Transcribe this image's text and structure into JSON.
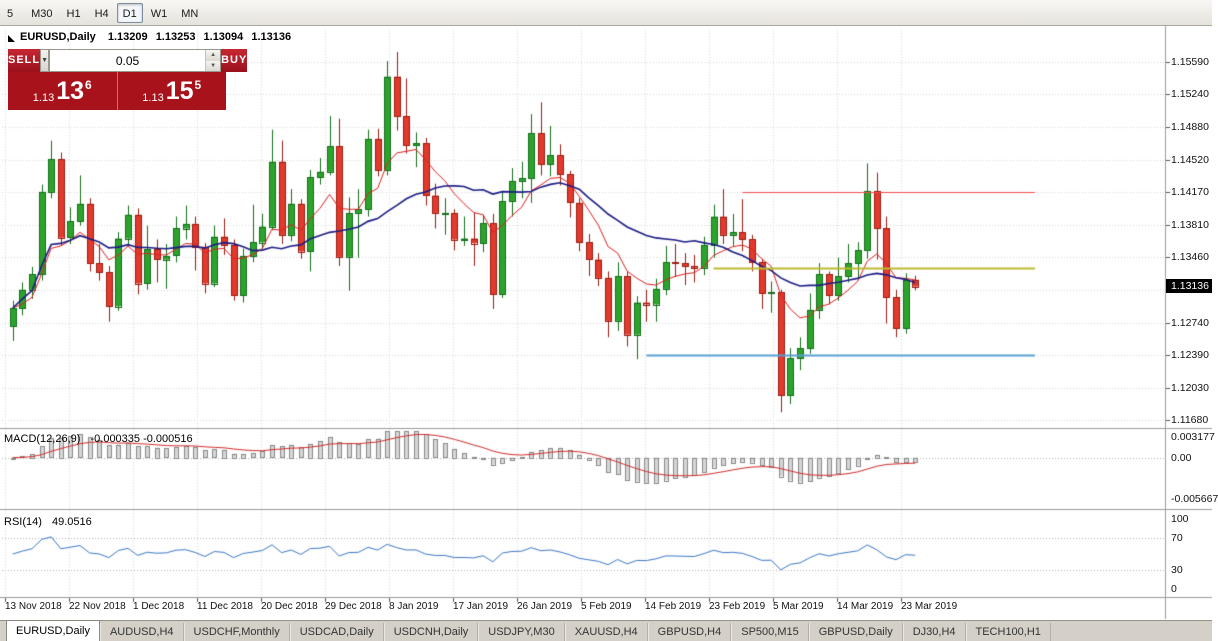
{
  "toolbar": {
    "timeframes": [
      {
        "label": "5",
        "active": false
      },
      {
        "label": "M30",
        "active": false
      },
      {
        "label": "H1",
        "active": false
      },
      {
        "label": "H4",
        "active": false
      },
      {
        "label": "D1",
        "active": true
      },
      {
        "label": "W1",
        "active": false
      },
      {
        "label": "MN",
        "active": false
      }
    ]
  },
  "chart_header": {
    "symbol_period": "EURUSD,Daily",
    "open": "1.13209",
    "high": "1.13253",
    "low": "1.13094",
    "close": "1.13136"
  },
  "trade_panel": {
    "sell_label": "SELL",
    "buy_label": "BUY",
    "volume": "0.05",
    "bid": {
      "prefix": "1.13",
      "big": "13",
      "sup": "6"
    },
    "ask": {
      "prefix": "1.13",
      "big": "15",
      "sup": "5"
    }
  },
  "icons": {
    "dropdown": "▼",
    "spin_up": "▲",
    "spin_down": "▼"
  },
  "price_scale": {
    "items": [
      {
        "price": 1.1559,
        "label": "1.15590"
      },
      {
        "price": 1.1524,
        "label": "1.15240"
      },
      {
        "price": 1.1488,
        "label": "1.14880"
      },
      {
        "price": 1.1452,
        "label": "1.14520"
      },
      {
        "price": 1.1417,
        "label": "1.14170"
      },
      {
        "price": 1.1381,
        "label": "1.13810"
      },
      {
        "price": 1.1346,
        "label": "1.13460"
      },
      {
        "price": 1.131,
        "label": ""
      },
      {
        "price": 1.1274,
        "label": "1.12740"
      },
      {
        "price": 1.1239,
        "label": "1.12390"
      },
      {
        "price": 1.1203,
        "label": "1.12030"
      },
      {
        "price": 1.1168,
        "label": "1.11680"
      }
    ],
    "current_price": 1.13136,
    "current_label": "1.13136"
  },
  "time_scale": {
    "labels": [
      "13 Nov 2018",
      "22 Nov 2018",
      "1 Dec 2018",
      "11 Dec 2018",
      "20 Dec 2018",
      "29 Dec 2018",
      "8 Jan 2019",
      "17 Jan 2019",
      "26 Jan 2019",
      "5 Feb 2019",
      "14 Feb 2019",
      "23 Feb 2019",
      "5 Mar 2019",
      "14 Mar 2019",
      "23 Mar 2019"
    ]
  },
  "indicators": {
    "macd": {
      "title": "MACD(12,26,9)",
      "values": "-0.000335 -0.000516",
      "scale": [
        {
          "value": 0.003177,
          "label": "0.003177"
        },
        {
          "value": 0,
          "label": "0.00"
        },
        {
          "value": -0.005667,
          "label": "-0.005667"
        }
      ]
    },
    "rsi": {
      "title": "RSI(14)",
      "value": "49.0516",
      "scale": [
        {
          "value": 100,
          "label": "100"
        },
        {
          "value": 70,
          "label": "70"
        },
        {
          "value": 30,
          "label": "30"
        },
        {
          "value": 0,
          "label": "0"
        }
      ]
    }
  },
  "tabs": [
    {
      "label": "EURUSD,Daily",
      "active": true
    },
    {
      "label": "AUDUSD,H4",
      "active": false
    },
    {
      "label": "USDCHF,Monthly",
      "active": false
    },
    {
      "label": "USDCAD,Daily",
      "active": false
    },
    {
      "label": "USDCNH,Daily",
      "active": false
    },
    {
      "label": "USDJPY,M30",
      "active": false
    },
    {
      "label": "XAUUSD,H4",
      "active": false
    },
    {
      "label": "GBPUSD,H4",
      "active": false
    },
    {
      "label": "SP500,M15",
      "active": false
    },
    {
      "label": "GBPUSD,Daily",
      "active": false
    },
    {
      "label": "DJ30,H4",
      "active": false
    },
    {
      "label": "TECH100,H1",
      "active": false
    }
  ],
  "colors": {
    "candle_up": "#2da32d",
    "candle_up_border": "#156f1c",
    "candle_down": "#e23a2c",
    "candle_down_border": "#9e1d12",
    "ma_fast": "#e02020",
    "ma_slow": "#1c1c84",
    "macd_histogram_fill": "#d6d6d6",
    "macd_histogram_border": "#8a8a8a",
    "macd_signal": "#d42a2a",
    "rsi_line": "#3c78c8",
    "hline_red": "#f25050",
    "hline_yellow": "#b9bc30",
    "hline_blue": "#56a0d2",
    "badge_bg": "#000000",
    "trade_red": "#a8121b",
    "grid": "#d9d9d9"
  },
  "chart_data": {
    "type": "candlestick",
    "symbol": "EURUSD",
    "timeframe": "Daily",
    "ylim": [
      1.1161,
      1.1594
    ],
    "macd_ylim": [
      -0.005667,
      0.003177
    ],
    "rsi_ylim": [
      0,
      100
    ],
    "ma_fast_period": 8,
    "ma_slow_period": 21,
    "hlines": [
      {
        "price": 1.1417,
        "color": "#f25050",
        "width": 1,
        "start_index": 76
      },
      {
        "price": 1.1334,
        "color": "#b9bc30",
        "width": 2,
        "start_index": 73
      },
      {
        "price": 1.1239,
        "color": "#56a0d2",
        "width": 2,
        "start_index": 66
      }
    ],
    "candles": [
      [
        1.127,
        1.1298,
        1.1254,
        1.129
      ],
      [
        1.129,
        1.1318,
        1.1282,
        1.131
      ],
      [
        1.131,
        1.1335,
        1.13,
        1.1327
      ],
      [
        1.1327,
        1.1425,
        1.132,
        1.1417
      ],
      [
        1.1417,
        1.1473,
        1.141,
        1.1453
      ],
      [
        1.1453,
        1.146,
        1.1358,
        1.1367
      ],
      [
        1.1367,
        1.14,
        1.136,
        1.1385
      ],
      [
        1.1385,
        1.1435,
        1.138,
        1.1404
      ],
      [
        1.1404,
        1.141,
        1.133,
        1.1339
      ],
      [
        1.1339,
        1.136,
        1.132,
        1.1329
      ],
      [
        1.1329,
        1.1336,
        1.1275,
        1.1292
      ],
      [
        1.1292,
        1.1373,
        1.1287,
        1.1366
      ],
      [
        1.1366,
        1.1402,
        1.1358,
        1.1392
      ],
      [
        1.1392,
        1.1399,
        1.1305,
        1.1317
      ],
      [
        1.1317,
        1.138,
        1.131,
        1.1354
      ],
      [
        1.1354,
        1.1365,
        1.1318,
        1.1343
      ],
      [
        1.1343,
        1.136,
        1.1311,
        1.1347
      ],
      [
        1.1347,
        1.139,
        1.134,
        1.1377
      ],
      [
        1.1377,
        1.1402,
        1.1365,
        1.1382
      ],
      [
        1.1382,
        1.139,
        1.1331,
        1.1357
      ],
      [
        1.1357,
        1.1361,
        1.1306,
        1.1317
      ],
      [
        1.1317,
        1.138,
        1.1313,
        1.1368
      ],
      [
        1.1368,
        1.1388,
        1.1348,
        1.1359
      ],
      [
        1.1359,
        1.1365,
        1.1298,
        1.1304
      ],
      [
        1.1304,
        1.1355,
        1.1296,
        1.1347
      ],
      [
        1.1347,
        1.1403,
        1.134,
        1.1362
      ],
      [
        1.1362,
        1.1393,
        1.1355,
        1.1379
      ],
      [
        1.1379,
        1.1485,
        1.1375,
        1.145
      ],
      [
        1.145,
        1.1473,
        1.136,
        1.137
      ],
      [
        1.137,
        1.142,
        1.1363,
        1.1404
      ],
      [
        1.1404,
        1.1409,
        1.1344,
        1.1352
      ],
      [
        1.1352,
        1.1441,
        1.133,
        1.1433
      ],
      [
        1.1433,
        1.1454,
        1.1425,
        1.1439
      ],
      [
        1.1439,
        1.15,
        1.1435,
        1.1467
      ],
      [
        1.1467,
        1.1497,
        1.1336,
        1.1346
      ],
      [
        1.1346,
        1.1411,
        1.1309,
        1.1394
      ],
      [
        1.1394,
        1.142,
        1.1345,
        1.1398
      ],
      [
        1.1398,
        1.1485,
        1.139,
        1.1475
      ],
      [
        1.1475,
        1.1486,
        1.1434,
        1.1441
      ],
      [
        1.1441,
        1.156,
        1.1435,
        1.1543
      ],
      [
        1.1543,
        1.157,
        1.1484,
        1.15
      ],
      [
        1.15,
        1.1541,
        1.1459,
        1.1468
      ],
      [
        1.1468,
        1.1482,
        1.1444,
        1.147
      ],
      [
        1.147,
        1.1476,
        1.1402,
        1.1413
      ],
      [
        1.1413,
        1.1426,
        1.1377,
        1.1394
      ],
      [
        1.1394,
        1.141,
        1.137,
        1.1394
      ],
      [
        1.1394,
        1.1398,
        1.1353,
        1.1365
      ],
      [
        1.1365,
        1.139,
        1.1358,
        1.1366
      ],
      [
        1.1366,
        1.1394,
        1.1336,
        1.1361
      ],
      [
        1.1361,
        1.1392,
        1.1351,
        1.1383
      ],
      [
        1.1383,
        1.1393,
        1.1289,
        1.1305
      ],
      [
        1.1305,
        1.1418,
        1.1301,
        1.1407
      ],
      [
        1.1407,
        1.1443,
        1.139,
        1.1429
      ],
      [
        1.1429,
        1.145,
        1.141,
        1.1432
      ],
      [
        1.1432,
        1.1502,
        1.1405,
        1.1481
      ],
      [
        1.1481,
        1.1515,
        1.1435,
        1.1447
      ],
      [
        1.1447,
        1.1489,
        1.1434,
        1.1457
      ],
      [
        1.1457,
        1.1469,
        1.1424,
        1.1436
      ],
      [
        1.1436,
        1.144,
        1.1389,
        1.1405
      ],
      [
        1.1405,
        1.141,
        1.1352,
        1.1362
      ],
      [
        1.1362,
        1.1371,
        1.1325,
        1.1343
      ],
      [
        1.1343,
        1.135,
        1.1314,
        1.1323
      ],
      [
        1.1323,
        1.133,
        1.1258,
        1.1276
      ],
      [
        1.1276,
        1.134,
        1.1265,
        1.1325
      ],
      [
        1.1325,
        1.133,
        1.1248,
        1.1261
      ],
      [
        1.1261,
        1.1303,
        1.1234,
        1.1296
      ],
      [
        1.1296,
        1.131,
        1.1275,
        1.1294
      ],
      [
        1.1294,
        1.1322,
        1.1275,
        1.1311
      ],
      [
        1.1311,
        1.1358,
        1.1304,
        1.134
      ],
      [
        1.134,
        1.136,
        1.1324,
        1.1339
      ],
      [
        1.1339,
        1.135,
        1.1315,
        1.1336
      ],
      [
        1.1336,
        1.1348,
        1.1318,
        1.1334
      ],
      [
        1.1334,
        1.1368,
        1.1326,
        1.1359
      ],
      [
        1.1359,
        1.1403,
        1.1345,
        1.139
      ],
      [
        1.139,
        1.142,
        1.136,
        1.137
      ],
      [
        1.137,
        1.1393,
        1.1358,
        1.1373
      ],
      [
        1.1373,
        1.1409,
        1.1352,
        1.1365
      ],
      [
        1.1365,
        1.137,
        1.133,
        1.134
      ],
      [
        1.134,
        1.1344,
        1.1289,
        1.1306
      ],
      [
        1.1306,
        1.1319,
        1.1285,
        1.1307
      ],
      [
        1.1307,
        1.131,
        1.1176,
        1.1194
      ],
      [
        1.1194,
        1.1246,
        1.1185,
        1.1235
      ],
      [
        1.1235,
        1.1258,
        1.1222,
        1.1246
      ],
      [
        1.1246,
        1.1306,
        1.124,
        1.1288
      ],
      [
        1.1288,
        1.1339,
        1.1278,
        1.1327
      ],
      [
        1.1327,
        1.133,
        1.1294,
        1.1304
      ],
      [
        1.1304,
        1.1345,
        1.1298,
        1.1325
      ],
      [
        1.1325,
        1.136,
        1.1318,
        1.1339
      ],
      [
        1.1339,
        1.1362,
        1.1323,
        1.1353
      ],
      [
        1.1353,
        1.1448,
        1.1344,
        1.1418
      ],
      [
        1.1418,
        1.1438,
        1.1343,
        1.1377
      ],
      [
        1.1377,
        1.139,
        1.1273,
        1.1302
      ],
      [
        1.1302,
        1.131,
        1.1258,
        1.1268
      ],
      [
        1.1268,
        1.1328,
        1.1262,
        1.1321
      ],
      [
        1.13209,
        1.13253,
        1.13094,
        1.13136
      ]
    ]
  }
}
